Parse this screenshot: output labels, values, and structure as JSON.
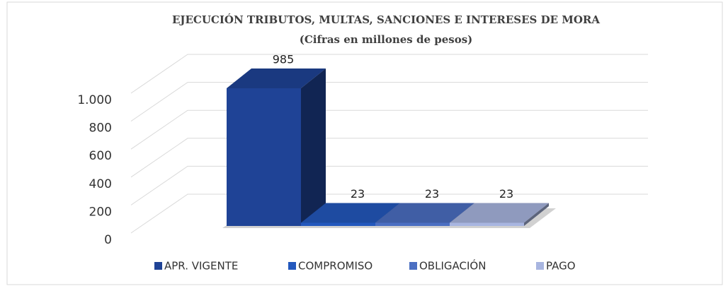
{
  "chart_data": {
    "type": "bar3d",
    "title": "EJECUCIÓN TRIBUTOS, MULTAS, SANCIONES E INTERESES DE MORA",
    "subtitle": "(Cifras en millones de pesos)",
    "categories": [
      null
    ],
    "series": [
      {
        "name": "APR. VIGENTE",
        "color": "#1f4396",
        "values": [
          985
        ]
      },
      {
        "name": "COMPROMISO",
        "color": "#2358bd",
        "values": [
          23
        ]
      },
      {
        "name": "OBLIGACIÓN",
        "color": "#4b6fc2",
        "values": [
          23
        ]
      },
      {
        "name": "PAGO",
        "color": "#a8b5e0",
        "values": [
          23
        ]
      }
    ],
    "ylim": [
      0,
      1000
    ],
    "yticks": [
      0,
      200,
      400,
      600,
      800,
      {
        "value": 1000,
        "label": "1.000"
      }
    ],
    "grid": true,
    "legend": "bottom"
  }
}
